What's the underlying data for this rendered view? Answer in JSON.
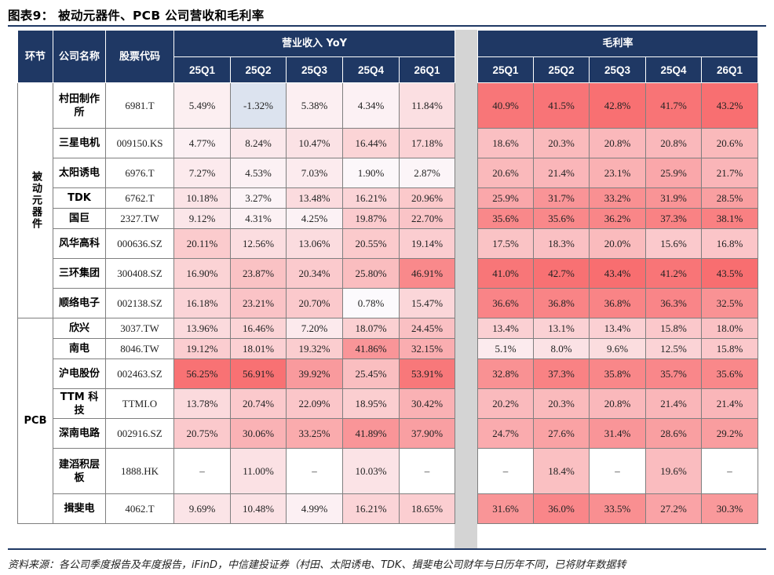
{
  "title": "图表9：  被动元器件、PCB 公司营收和毛利率",
  "header": {
    "segment": "环节",
    "company": "公司名称",
    "code": "股票代码",
    "revenue_group": "营业收入 YoY",
    "margin_group": "毛利率",
    "quarters": [
      "25Q1",
      "25Q2",
      "25Q3",
      "25Q4",
      "26Q1"
    ]
  },
  "sections": [
    {
      "name": "被动元器件",
      "rows": [
        {
          "company": "村田制作所",
          "code": "6981.T",
          "revenue": [
            "5.49%",
            "-1.32%",
            "5.38%",
            "4.34%",
            "11.84%"
          ],
          "margin": [
            "40.9%",
            "41.5%",
            "42.8%",
            "41.7%",
            "43.2%"
          ]
        },
        {
          "company": "三星电机",
          "code": "009150.KS",
          "revenue": [
            "4.77%",
            "8.24%",
            "10.47%",
            "16.44%",
            "17.18%"
          ],
          "margin": [
            "18.6%",
            "20.3%",
            "20.8%",
            "20.8%",
            "20.6%"
          ]
        },
        {
          "company": "太阳诱电",
          "code": "6976.T",
          "revenue": [
            "7.27%",
            "4.53%",
            "7.03%",
            "1.90%",
            "2.87%"
          ],
          "margin": [
            "20.6%",
            "21.4%",
            "23.1%",
            "25.9%",
            "21.7%"
          ]
        },
        {
          "company": "TDK",
          "code": "6762.T",
          "revenue": [
            "10.18%",
            "3.27%",
            "13.48%",
            "16.21%",
            "20.96%"
          ],
          "margin": [
            "25.9%",
            "31.7%",
            "33.2%",
            "31.9%",
            "28.5%"
          ]
        },
        {
          "company": "国巨",
          "code": "2327.TW",
          "revenue": [
            "9.12%",
            "4.31%",
            "4.25%",
            "19.87%",
            "22.70%"
          ],
          "margin": [
            "35.6%",
            "35.6%",
            "36.2%",
            "37.3%",
            "38.1%"
          ]
        },
        {
          "company": "风华高科",
          "code": "000636.SZ",
          "revenue": [
            "20.11%",
            "12.56%",
            "13.06%",
            "20.55%",
            "19.14%"
          ],
          "margin": [
            "17.5%",
            "18.3%",
            "20.0%",
            "15.6%",
            "16.8%"
          ]
        },
        {
          "company": "三环集团",
          "code": "300408.SZ",
          "revenue": [
            "16.90%",
            "23.87%",
            "20.34%",
            "25.80%",
            "46.91%"
          ],
          "margin": [
            "41.0%",
            "42.7%",
            "43.4%",
            "41.2%",
            "43.5%"
          ]
        },
        {
          "company": "顺络电子",
          "code": "002138.SZ",
          "revenue": [
            "16.18%",
            "23.21%",
            "20.70%",
            "0.78%",
            "15.47%"
          ],
          "margin": [
            "36.6%",
            "36.8%",
            "36.8%",
            "36.3%",
            "32.5%"
          ]
        }
      ]
    },
    {
      "name": "PCB",
      "rows": [
        {
          "company": "欣兴",
          "code": "3037.TW",
          "revenue": [
            "13.96%",
            "16.46%",
            "7.20%",
            "18.07%",
            "24.45%"
          ],
          "margin": [
            "13.4%",
            "13.1%",
            "13.4%",
            "15.8%",
            "18.0%"
          ]
        },
        {
          "company": "南电",
          "code": "8046.TW",
          "revenue": [
            "19.12%",
            "18.01%",
            "19.32%",
            "41.86%",
            "32.15%"
          ],
          "margin": [
            "5.1%",
            "8.0%",
            "9.6%",
            "12.5%",
            "15.8%"
          ]
        },
        {
          "company": "沪电股份",
          "code": "002463.SZ",
          "revenue": [
            "56.25%",
            "56.91%",
            "39.92%",
            "25.45%",
            "53.91%"
          ],
          "margin": [
            "32.8%",
            "37.3%",
            "35.8%",
            "35.7%",
            "35.6%"
          ]
        },
        {
          "company": "TTM 科技",
          "code": "TTMI.O",
          "revenue": [
            "13.78%",
            "20.74%",
            "22.09%",
            "18.95%",
            "30.42%"
          ],
          "margin": [
            "20.2%",
            "20.3%",
            "20.8%",
            "21.4%",
            "21.4%"
          ]
        },
        {
          "company": "深南电路",
          "code": "002916.SZ",
          "revenue": [
            "20.75%",
            "30.06%",
            "33.25%",
            "41.89%",
            "37.90%"
          ],
          "margin": [
            "24.7%",
            "27.6%",
            "31.4%",
            "28.6%",
            "29.2%"
          ]
        },
        {
          "company": "建滔积层板",
          "code": "1888.HK",
          "revenue": [
            "–",
            "11.00%",
            "–",
            "10.03%",
            "–"
          ],
          "margin": [
            "–",
            "18.4%",
            "–",
            "19.6%",
            "–"
          ]
        },
        {
          "company": "揖斐电",
          "code": "4062.T",
          "revenue": [
            "9.69%",
            "10.48%",
            "4.99%",
            "16.21%",
            "18.65%"
          ],
          "margin": [
            "31.6%",
            "36.0%",
            "33.5%",
            "27.2%",
            "30.3%"
          ]
        }
      ]
    }
  ],
  "source": "资料来源：各公司季度报告及年度报告，iFinD，中信建投证券（村田、太阳诱电、TDK、揖斐电公司财年与日历年不同，已将财年数据转",
  "colors": {
    "header_bg": "#1f3864",
    "heat_high": "#f8696b",
    "heat_low": "#fcfcff",
    "negative": "#dce3ef"
  }
}
